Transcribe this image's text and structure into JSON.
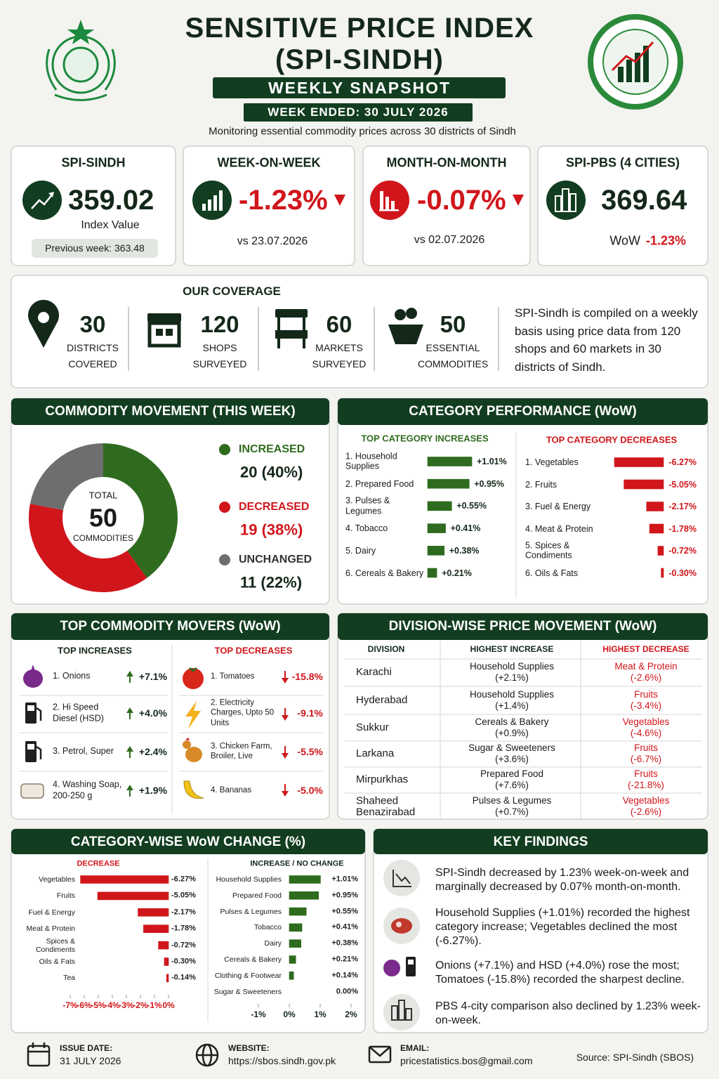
{
  "header": {
    "title_line1": "SENSITIVE PRICE INDEX",
    "title_line2": "(SPI-SINDH)",
    "banner": "WEEKLY SNAPSHOT",
    "week": "WEEK ENDED: 30 JULY 2026",
    "subtitle": "Monitoring essential commodity prices across 30 districts of Sindh"
  },
  "kpis": [
    {
      "title": "SPI-SINDH",
      "value": "359.02",
      "caption": "Index Value",
      "note": "Previous week: 363.48"
    },
    {
      "title": "WEEK-ON-WEEK",
      "value": "-1.23%",
      "note": "vs 23.07.2026"
    },
    {
      "title": "MONTH-ON-MONTH",
      "value": "-0.07%",
      "note": "vs 02.07.2026"
    },
    {
      "title": "SPI-PBS (4 CITIES)",
      "value": "369.64",
      "note": "WoW",
      "note_value": "-1.23%"
    }
  ],
  "coverage": {
    "title": "OUR COVERAGE",
    "items": [
      {
        "value": "30",
        "label": "DISTRICTS COVERED"
      },
      {
        "value": "120",
        "label": "SHOPS SURVEYED"
      },
      {
        "value": "60",
        "label": "MARKETS SURVEYED"
      },
      {
        "value": "50",
        "label": "ESSENTIAL COMMODITIES"
      }
    ],
    "description": "SPI-Sindh is compiled on a weekly basis using price data from 120 shops and 60 markets in 30 districts of Sindh."
  },
  "sections": {
    "commodity_movement": "COMMODITY MOVEMENT (THIS WEEK)",
    "category_performance": "CATEGORY PERFORMANCE (WoW)",
    "top_movers": "TOP COMMODITY MOVERS (WoW)",
    "division": "DIVISION-WISE PRICE MOVEMENT (WoW)",
    "category_wow": "CATEGORY-WISE WoW CHANGE (%)",
    "key_findings": "KEY FINDINGS"
  },
  "chart_data": [
    {
      "type": "donut",
      "center": [
        "TOTAL",
        "50",
        "COMMODITIES"
      ],
      "categories": [
        "INCREASED",
        "DECREASED",
        "UNCHANGED"
      ],
      "values": [
        20,
        19,
        11
      ],
      "value_labels": [
        "20 (40%)",
        "19 (38%)",
        "11 (22%)"
      ],
      "colors": [
        "#2f6b1f",
        "#d0161b",
        "#6e6e6e"
      ]
    },
    {
      "type": "bar",
      "title": "TOP CATEGORY INCREASES",
      "categories": [
        "1. Household Supplies",
        "2. Prepared Food",
        "3. Pulses & Legumes",
        "4. Tobacco",
        "5. Dairy",
        "6. Cereals & Bakery"
      ],
      "values": [
        1.01,
        0.95,
        0.55,
        0.41,
        0.38,
        0.21
      ],
      "value_labels": [
        "+1.01%",
        "+0.95%",
        "+0.55%",
        "+0.41%",
        "+0.38%",
        "+0.21%"
      ],
      "color": "#2f6b1f"
    },
    {
      "type": "bar",
      "title": "TOP CATEGORY DECREASES",
      "categories": [
        "1. Vegetables",
        "2. Fruits",
        "3. Fuel & Energy",
        "4. Meat & Protein",
        "5. Spices & Condiments",
        "6. Oils & Fats"
      ],
      "values": [
        -6.27,
        -5.05,
        -2.17,
        -1.78,
        -0.72,
        -0.3
      ],
      "value_labels": [
        "-6.27%",
        "-5.05%",
        "-2.17%",
        "-1.78%",
        "-0.72%",
        "-0.30%"
      ],
      "color": "#d0161b"
    },
    {
      "type": "bar",
      "title": "DECREASE",
      "categories": [
        "Vegetables",
        "Fruits",
        "Fuel & Energy",
        "Meat & Protein",
        "Spices & Condiments",
        "Oils & Fats",
        "Tea"
      ],
      "values": [
        -6.27,
        -5.05,
        -2.17,
        -1.78,
        -0.72,
        -0.3,
        -0.14
      ],
      "value_labels": [
        "-6.27%",
        "-5.05%",
        "-2.17%",
        "-1.78%",
        "-0.72%",
        "-0.30%",
        "-0.14%"
      ],
      "color": "#d0161b",
      "xlim": [
        -7,
        0
      ],
      "xticks": [
        {
          "value": -7,
          "label": "-7%"
        },
        {
          "value": -6,
          "label": "-6%"
        },
        {
          "value": -5,
          "label": "-5%"
        },
        {
          "value": -4,
          "label": "-4%"
        },
        {
          "value": -3,
          "label": "-3%"
        },
        {
          "value": -2,
          "label": "-2%"
        },
        {
          "value": -1,
          "label": "-1%"
        },
        {
          "value": 0,
          "label": "0%"
        }
      ]
    },
    {
      "type": "bar",
      "title": "INCREASE / NO CHANGE",
      "categories": [
        "Household Supplies",
        "Prepared Food",
        "Pulses & Legumes",
        "Tobacco",
        "Dairy",
        "Cereals & Bakery",
        "Clothing & Footwear",
        "Sugar & Sweeteners"
      ],
      "values": [
        1.01,
        0.95,
        0.55,
        0.41,
        0.38,
        0.21,
        0.14,
        0.0
      ],
      "value_labels": [
        "+1.01%",
        "+0.95%",
        "+0.55%",
        "+0.41%",
        "+0.38%",
        "+0.21%",
        "+0.14%",
        "0.00%"
      ],
      "color": "#2f6b1f",
      "xlim": [
        -1,
        2
      ],
      "xticks": [
        {
          "value": -1,
          "label": "-1%"
        },
        {
          "value": 0,
          "label": "0%"
        },
        {
          "value": 1,
          "label": "1%"
        },
        {
          "value": 2,
          "label": "2%"
        }
      ]
    }
  ],
  "top_movers": {
    "increases_title": "TOP INCREASES",
    "increases": [
      {
        "name": "1. Onions",
        "change": "+7.1%"
      },
      {
        "name": "2. Hi Speed Diesel (HSD)",
        "change": "+4.0%"
      },
      {
        "name": "3. Petrol, Super",
        "change": "+2.4%"
      },
      {
        "name": "4. Washing Soap, 200-250 g",
        "change": "+1.9%"
      }
    ],
    "decreases_title": "TOP DECREASES",
    "decreases": [
      {
        "name": "1. Tomatoes",
        "change": "-15.8%"
      },
      {
        "name": "2. Electricity Charges, Upto 50 Units",
        "change": "-9.1%"
      },
      {
        "name": "3. Chicken Farm, Broiler, Live",
        "change": "-5.5%"
      },
      {
        "name": "4. Bananas",
        "change": "-5.0%"
      }
    ]
  },
  "division": {
    "headers": [
      "DIVISION",
      "HIGHEST INCREASE",
      "HIGHEST DECREASE"
    ],
    "rows": [
      {
        "division": "Karachi",
        "increase": "Household Supplies",
        "increase_pct": "(+2.1%)",
        "decrease": "Meat & Protein",
        "decrease_pct": "(-2.6%)"
      },
      {
        "division": "Hyderabad",
        "increase": "Household Supplies",
        "increase_pct": "(+1.4%)",
        "decrease": "Fruits",
        "decrease_pct": "(-3.4%)"
      },
      {
        "division": "Sukkur",
        "increase": "Cereals & Bakery",
        "increase_pct": "(+0.9%)",
        "decrease": "Vegetables",
        "decrease_pct": "(-4.6%)"
      },
      {
        "division": "Larkana",
        "increase": "Sugar & Sweeteners",
        "increase_pct": "(+3.6%)",
        "decrease": "Fruits",
        "decrease_pct": "(-6.7%)"
      },
      {
        "division": "Mirpurkhas",
        "increase": "Prepared Food",
        "increase_pct": "(+7.6%)",
        "decrease": "Fruits",
        "decrease_pct": "(-21.8%)"
      },
      {
        "division": "Shaheed Benazirabad",
        "increase": "Pulses & Legumes",
        "increase_pct": "(+0.7%)",
        "decrease": "Vegetables",
        "decrease_pct": "(-2.6%)"
      }
    ]
  },
  "key_findings": [
    "SPI-Sindh decreased by 1.23% week-on-week and marginally decreased by 0.07% month-on-month.",
    "Household Supplies (+1.01%) recorded the highest category increase; Vegetables declined the most (-6.27%).",
    "Onions (+7.1%) and HSD (+4.0%) rose the most; Tomatoes (-15.8%) recorded the sharpest decline.",
    "PBS 4-city comparison also declined by 1.23% week-on-week."
  ],
  "footer": {
    "issue_label": "ISSUE DATE:",
    "issue_date": "31 JULY 2026",
    "website_label": "WEBSITE:",
    "website": "https://sbos.sindh.gov.pk",
    "email_label": "EMAIL:",
    "email": "pricestatistics.bos@gmail.com",
    "source": "Source:  SPI-Sindh (SBOS)"
  }
}
